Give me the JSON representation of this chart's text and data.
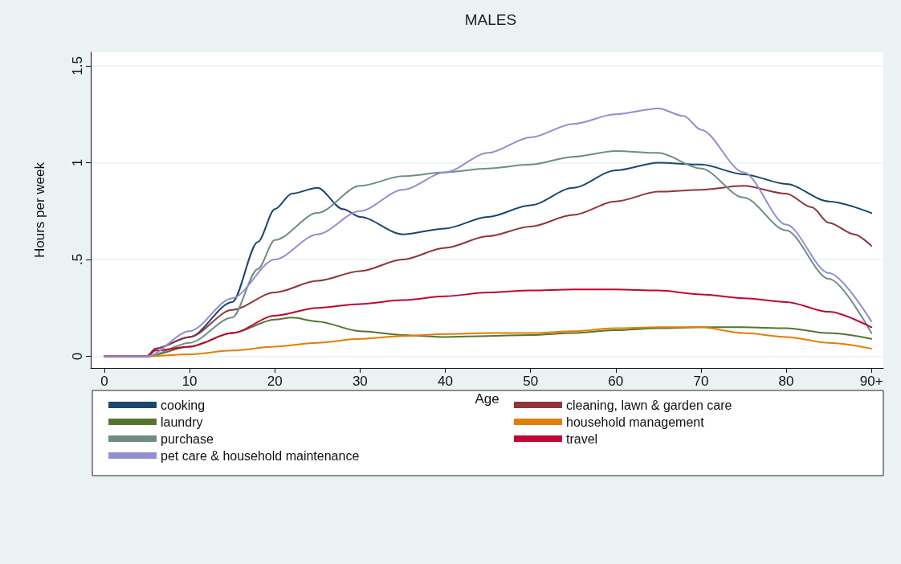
{
  "chart_data": {
    "type": "line",
    "title": "MALES",
    "xlabel": "Age",
    "ylabel": "Hours per week",
    "xlim": [
      -1.6,
      91.4
    ],
    "xticks": [
      0,
      10,
      20,
      30,
      40,
      50,
      60,
      70,
      80,
      {
        "value": 90,
        "label": "90+"
      }
    ],
    "ylim": [
      -0.06,
      1.57
    ],
    "yticks": [
      0,
      {
        "value": 0.5,
        "label": ".5"
      },
      1,
      1.5
    ],
    "grid": "y",
    "legend": "bottom",
    "marker": "none",
    "line_style": "solid",
    "series": [
      {
        "name": "cooking",
        "color": "#1a476f",
        "x": [
          0,
          5,
          6,
          10,
          15,
          18,
          20,
          22,
          25,
          28,
          30,
          35,
          40,
          45,
          50,
          55,
          60,
          65,
          70,
          75,
          80,
          85,
          90
        ],
        "values": [
          0,
          0,
          0.04,
          0.1,
          0.28,
          0.59,
          0.76,
          0.84,
          0.87,
          0.76,
          0.72,
          0.63,
          0.66,
          0.72,
          0.78,
          0.87,
          0.96,
          1.0,
          0.99,
          0.94,
          0.89,
          0.8,
          0.74
        ]
      },
      {
        "name": "cleaning, lawn & garden care",
        "color": "#90353b",
        "x": [
          0,
          5,
          6,
          10,
          15,
          20,
          25,
          30,
          35,
          40,
          45,
          50,
          55,
          60,
          65,
          70,
          75,
          80,
          83,
          85,
          88,
          90
        ],
        "values": [
          0,
          0,
          0.04,
          0.1,
          0.24,
          0.33,
          0.39,
          0.44,
          0.5,
          0.56,
          0.62,
          0.67,
          0.73,
          0.8,
          0.85,
          0.86,
          0.88,
          0.84,
          0.77,
          0.69,
          0.63,
          0.57
        ]
      },
      {
        "name": "laundry",
        "color": "#55752f",
        "x": [
          0,
          5,
          10,
          15,
          20,
          22,
          25,
          30,
          35,
          40,
          45,
          50,
          55,
          60,
          65,
          70,
          75,
          80,
          85,
          90
        ],
        "values": [
          0,
          0,
          0.05,
          0.12,
          0.19,
          0.2,
          0.18,
          0.13,
          0.11,
          0.1,
          0.105,
          0.11,
          0.12,
          0.135,
          0.145,
          0.15,
          0.15,
          0.145,
          0.12,
          0.09
        ]
      },
      {
        "name": "household management",
        "color": "#e37e00",
        "x": [
          0,
          5,
          10,
          15,
          20,
          25,
          30,
          35,
          40,
          45,
          50,
          55,
          60,
          65,
          70,
          75,
          80,
          85,
          90
        ],
        "values": [
          0,
          0,
          0.01,
          0.03,
          0.05,
          0.07,
          0.09,
          0.105,
          0.115,
          0.12,
          0.12,
          0.13,
          0.145,
          0.15,
          0.15,
          0.12,
          0.1,
          0.07,
          0.04
        ]
      },
      {
        "name": "purchase",
        "color": "#6e8e84",
        "x": [
          0,
          5,
          10,
          15,
          18,
          20,
          25,
          30,
          35,
          40,
          45,
          50,
          55,
          60,
          65,
          70,
          75,
          80,
          85,
          90
        ],
        "values": [
          0,
          0,
          0.07,
          0.2,
          0.45,
          0.6,
          0.74,
          0.88,
          0.93,
          0.95,
          0.97,
          0.99,
          1.03,
          1.06,
          1.05,
          0.97,
          0.82,
          0.65,
          0.4,
          0.12
        ]
      },
      {
        "name": "travel",
        "color": "#c10534",
        "x": [
          0,
          5,
          6,
          10,
          15,
          20,
          25,
          30,
          35,
          40,
          45,
          50,
          55,
          60,
          65,
          70,
          75,
          80,
          85,
          90
        ],
        "values": [
          0,
          0,
          0.03,
          0.05,
          0.12,
          0.21,
          0.25,
          0.27,
          0.29,
          0.31,
          0.33,
          0.34,
          0.345,
          0.345,
          0.34,
          0.32,
          0.3,
          0.28,
          0.23,
          0.15
        ]
      },
      {
        "name": "pet care & household maintenance",
        "color": "#938dd2",
        "x": [
          0,
          5,
          10,
          15,
          20,
          25,
          30,
          35,
          40,
          45,
          50,
          55,
          60,
          65,
          68,
          70,
          75,
          80,
          85,
          90
        ],
        "values": [
          0,
          0,
          0.13,
          0.3,
          0.5,
          0.63,
          0.75,
          0.86,
          0.95,
          1.05,
          1.13,
          1.2,
          1.25,
          1.28,
          1.24,
          1.17,
          0.95,
          0.68,
          0.43,
          0.18
        ]
      }
    ]
  }
}
